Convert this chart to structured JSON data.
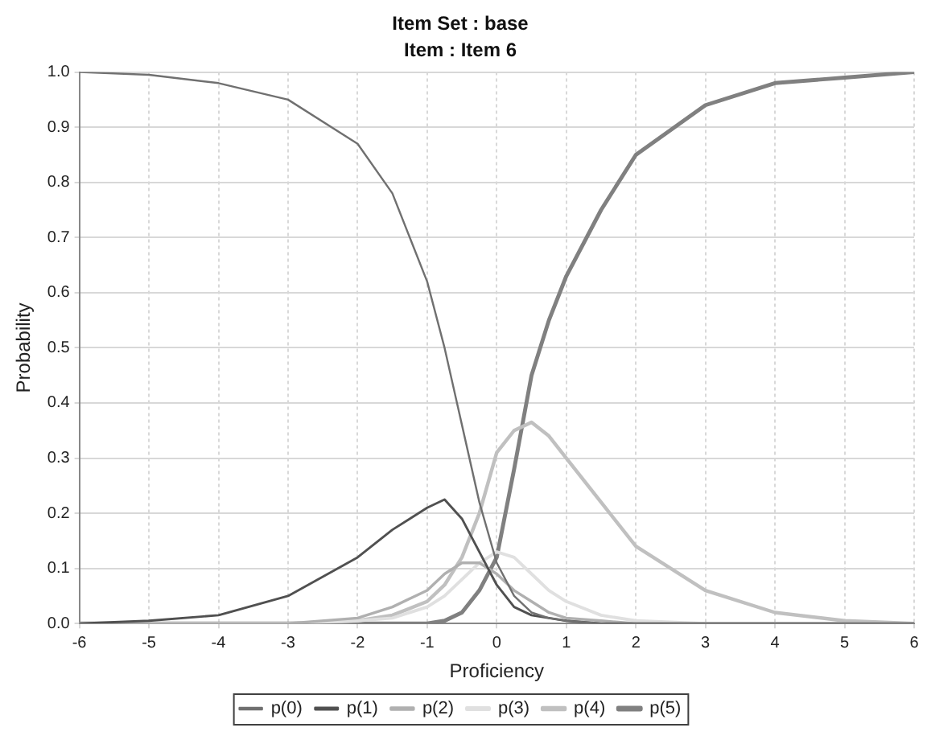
{
  "chart_data": {
    "type": "line",
    "title": "Item Set : base",
    "subtitle": "Item : Item 6",
    "xlabel": "Proficiency",
    "ylabel": "Probability",
    "x": [
      -6,
      -5,
      -4,
      -3,
      -2,
      -1.5,
      -1,
      -0.75,
      -0.5,
      -0.25,
      0,
      0.25,
      0.5,
      0.75,
      1,
      1.5,
      2,
      3,
      4,
      5,
      6
    ],
    "series": [
      {
        "name": "p(0)",
        "color": "#707070",
        "values": [
          1.0,
          0.995,
          0.98,
          0.95,
          0.87,
          0.78,
          0.62,
          0.5,
          0.36,
          0.22,
          0.11,
          0.05,
          0.02,
          0.01,
          0.005,
          0,
          0,
          0,
          0,
          0,
          0
        ]
      },
      {
        "name": "p(1)",
        "color": "#505050",
        "values": [
          0,
          0.005,
          0.015,
          0.05,
          0.12,
          0.17,
          0.21,
          0.225,
          0.19,
          0.13,
          0.07,
          0.03,
          0.015,
          0.01,
          0.005,
          0,
          0,
          0,
          0,
          0,
          0
        ]
      },
      {
        "name": "p(2)",
        "color": "#b0b0b0",
        "values": [
          0,
          0,
          0,
          0,
          0.01,
          0.03,
          0.06,
          0.09,
          0.11,
          0.11,
          0.09,
          0.06,
          0.04,
          0.02,
          0.01,
          0.005,
          0,
          0,
          0,
          0,
          0
        ]
      },
      {
        "name": "p(3)",
        "color": "#e0e0e0",
        "values": [
          0,
          0,
          0,
          0,
          0.005,
          0.01,
          0.03,
          0.05,
          0.08,
          0.11,
          0.13,
          0.12,
          0.09,
          0.06,
          0.04,
          0.015,
          0.005,
          0,
          0,
          0,
          0
        ]
      },
      {
        "name": "p(4)",
        "color": "#c0c0c0",
        "values": [
          0,
          0,
          0,
          0,
          0.005,
          0.015,
          0.04,
          0.07,
          0.12,
          0.2,
          0.31,
          0.35,
          0.365,
          0.34,
          0.3,
          0.22,
          0.14,
          0.06,
          0.02,
          0.005,
          0
        ]
      },
      {
        "name": "p(5)",
        "color": "#808080",
        "values": [
          0,
          0,
          0,
          0,
          0,
          0,
          0,
          0.005,
          0.02,
          0.06,
          0.12,
          0.28,
          0.45,
          0.55,
          0.63,
          0.75,
          0.85,
          0.94,
          0.98,
          0.99,
          1.0
        ]
      }
    ],
    "xlim": [
      -6,
      6
    ],
    "xticks": [
      -6,
      -5,
      -4,
      -3,
      -2,
      -1,
      0,
      1,
      2,
      3,
      4,
      5,
      6
    ],
    "ylim": [
      0,
      1
    ],
    "yticks": [
      {
        "value": 0,
        "label": "0.0"
      },
      0.1,
      0.2,
      0.3,
      0.4,
      0.5,
      0.6,
      0.7,
      0.8,
      0.9,
      {
        "value": 1,
        "label": "1.0"
      }
    ],
    "grid": true,
    "legend": "bottom",
    "marker": "none",
    "line_style": "solid"
  }
}
